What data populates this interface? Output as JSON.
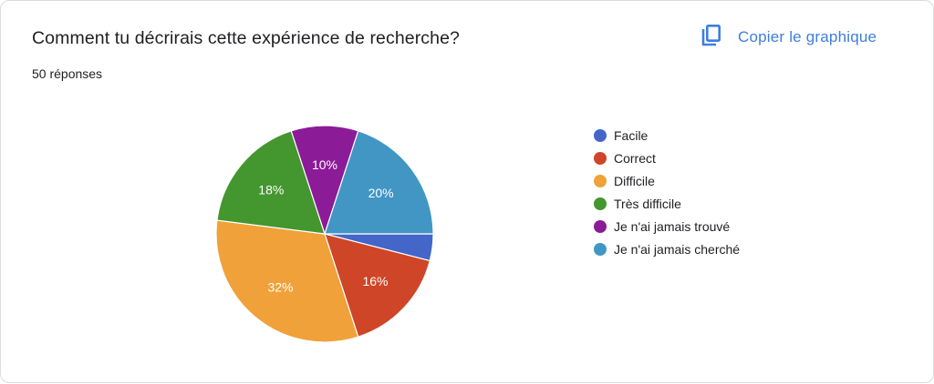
{
  "card": {
    "title": "Comment tu décrirais cette expérience de recherche?",
    "responses": "50 réponses",
    "copy_button": {
      "label": "Copier le graphique",
      "icon": "copy-icon",
      "color": "#3f7ee0"
    }
  },
  "chart_data": {
    "type": "pie",
    "title": "Comment tu décrirais cette expérience de recherche?",
    "subtitle": "50 réponses",
    "total_responses": 50,
    "legend_position": "right",
    "start_angle_deg": 0,
    "direction": "clockwise",
    "categories": [
      "Facile",
      "Correct",
      "Difficile",
      "Très difficile",
      "Je n'ai jamais trouvé",
      "Je n'ai jamais cherché"
    ],
    "values": [
      4,
      16,
      32,
      18,
      10,
      20
    ],
    "labels": [
      "",
      "16%",
      "32%",
      "18%",
      "10%",
      "20%"
    ],
    "colors": [
      "#4366c8",
      "#cf4527",
      "#f0a13a",
      "#44962f",
      "#8c1b97",
      "#4196c4"
    ]
  }
}
